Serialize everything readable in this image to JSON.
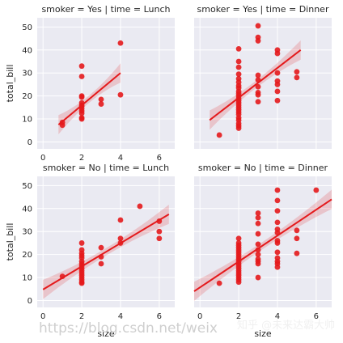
{
  "chart_data": [
    {
      "type": "scatter",
      "title": "smoker = Yes | time = Lunch",
      "xlabel": "",
      "ylabel": "total_bill",
      "xlim": [
        -0.3,
        6.8
      ],
      "ylim": [
        -3,
        54
      ],
      "x_ticks": [
        "0",
        "2",
        "4",
        "6"
      ],
      "y_ticks": [
        "0",
        "10",
        "20",
        "30",
        "40",
        "50"
      ],
      "color": "#e41a1c",
      "grid": true,
      "regression": {
        "x": [
          0.8,
          4.0
        ],
        "y": [
          7.5,
          30.0
        ]
      },
      "points": [
        {
          "x": 1,
          "y": 8.5
        },
        {
          "x": 1,
          "y": 7.3
        },
        {
          "x": 2,
          "y": 33.0
        },
        {
          "x": 2,
          "y": 28.5
        },
        {
          "x": 2,
          "y": 20.0
        },
        {
          "x": 2,
          "y": 16.0
        },
        {
          "x": 2,
          "y": 15.5
        },
        {
          "x": 2,
          "y": 14.5
        },
        {
          "x": 2,
          "y": 13.5
        },
        {
          "x": 2,
          "y": 12.5
        },
        {
          "x": 2,
          "y": 10.5
        },
        {
          "x": 2,
          "y": 10.0
        },
        {
          "x": 2,
          "y": 19.5
        },
        {
          "x": 2,
          "y": 17.0
        },
        {
          "x": 3,
          "y": 16.5
        },
        {
          "x": 3,
          "y": 18.5
        },
        {
          "x": 4,
          "y": 43.0
        },
        {
          "x": 4,
          "y": 20.5
        }
      ]
    },
    {
      "type": "scatter",
      "title": "smoker = Yes | time = Dinner",
      "xlabel": "",
      "ylabel": "",
      "xlim": [
        -0.3,
        6.8
      ],
      "ylim": [
        -3,
        54
      ],
      "color": "#e41a1c",
      "grid": true,
      "regression": {
        "x": [
          0.5,
          5.2
        ],
        "y": [
          9.5,
          40.0
        ]
      },
      "points": [
        {
          "x": 1,
          "y": 3.0
        },
        {
          "x": 2,
          "y": 40.5
        },
        {
          "x": 2,
          "y": 35.0
        },
        {
          "x": 2,
          "y": 32.5
        },
        {
          "x": 2,
          "y": 29.5
        },
        {
          "x": 2,
          "y": 27.5
        },
        {
          "x": 2,
          "y": 26.0
        },
        {
          "x": 2,
          "y": 24.5
        },
        {
          "x": 2,
          "y": 23.5
        },
        {
          "x": 2,
          "y": 22.0
        },
        {
          "x": 2,
          "y": 21.0
        },
        {
          "x": 2,
          "y": 20.0
        },
        {
          "x": 2,
          "y": 19.0
        },
        {
          "x": 2,
          "y": 18.0
        },
        {
          "x": 2,
          "y": 17.0
        },
        {
          "x": 2,
          "y": 16.0
        },
        {
          "x": 2,
          "y": 15.0
        },
        {
          "x": 2,
          "y": 14.0
        },
        {
          "x": 2,
          "y": 13.0
        },
        {
          "x": 2,
          "y": 12.0
        },
        {
          "x": 2,
          "y": 10.5
        },
        {
          "x": 2,
          "y": 9.5
        },
        {
          "x": 2,
          "y": 8.0
        },
        {
          "x": 2,
          "y": 7.0
        },
        {
          "x": 2,
          "y": 6.0
        },
        {
          "x": 3,
          "y": 50.5
        },
        {
          "x": 3,
          "y": 45.5
        },
        {
          "x": 3,
          "y": 44.0
        },
        {
          "x": 3,
          "y": 29.0
        },
        {
          "x": 3,
          "y": 27.0
        },
        {
          "x": 3,
          "y": 24.0
        },
        {
          "x": 3,
          "y": 21.5
        },
        {
          "x": 3,
          "y": 20.5
        },
        {
          "x": 3,
          "y": 17.5
        },
        {
          "x": 4,
          "y": 40.0
        },
        {
          "x": 4,
          "y": 38.5
        },
        {
          "x": 4,
          "y": 30.0
        },
        {
          "x": 4,
          "y": 26.5
        },
        {
          "x": 4,
          "y": 25.0
        },
        {
          "x": 4,
          "y": 22.0
        },
        {
          "x": 4,
          "y": 18.0
        },
        {
          "x": 5,
          "y": 30.5
        },
        {
          "x": 5,
          "y": 28.0
        }
      ]
    },
    {
      "type": "scatter",
      "title": "smoker = No | time = Lunch",
      "xlabel": "size",
      "ylabel": "total_bill",
      "xlim": [
        -0.3,
        6.8
      ],
      "ylim": [
        -3,
        54
      ],
      "x_ticks": [
        "0",
        "2",
        "4",
        "6"
      ],
      "y_ticks": [
        "0",
        "10",
        "20",
        "30",
        "40",
        "50"
      ],
      "color": "#e41a1c",
      "grid": true,
      "regression": {
        "x": [
          0.0,
          6.5
        ],
        "y": [
          4.8,
          37.5
        ]
      },
      "points": [
        {
          "x": 1,
          "y": 10.5
        },
        {
          "x": 2,
          "y": 25.0
        },
        {
          "x": 2,
          "y": 22.0
        },
        {
          "x": 2,
          "y": 20.5
        },
        {
          "x": 2,
          "y": 19.5
        },
        {
          "x": 2,
          "y": 18.5
        },
        {
          "x": 2,
          "y": 17.0
        },
        {
          "x": 2,
          "y": 16.0
        },
        {
          "x": 2,
          "y": 15.0
        },
        {
          "x": 2,
          "y": 14.0
        },
        {
          "x": 2,
          "y": 13.0
        },
        {
          "x": 2,
          "y": 12.0
        },
        {
          "x": 2,
          "y": 11.0
        },
        {
          "x": 2,
          "y": 10.0
        },
        {
          "x": 2,
          "y": 9.0
        },
        {
          "x": 2,
          "y": 8.0
        },
        {
          "x": 2,
          "y": 7.5
        },
        {
          "x": 3,
          "y": 23.0
        },
        {
          "x": 3,
          "y": 19.0
        },
        {
          "x": 3,
          "y": 16.0
        },
        {
          "x": 4,
          "y": 35.0
        },
        {
          "x": 4,
          "y": 27.0
        },
        {
          "x": 4,
          "y": 25.0
        },
        {
          "x": 5,
          "y": 41.0
        },
        {
          "x": 6,
          "y": 34.5
        },
        {
          "x": 6,
          "y": 30.0
        },
        {
          "x": 6,
          "y": 27.0
        }
      ]
    },
    {
      "type": "scatter",
      "title": "smoker = No | time = Dinner",
      "xlabel": "size",
      "ylabel": "",
      "xlim": [
        -0.3,
        6.8
      ],
      "ylim": [
        -3,
        54
      ],
      "x_ticks": [
        "0",
        "2",
        "4",
        "6"
      ],
      "color": "#e41a1c",
      "grid": true,
      "regression": {
        "x": [
          -0.3,
          6.8
        ],
        "y": [
          4.0,
          44.0
        ]
      },
      "points": [
        {
          "x": 1,
          "y": 7.5
        },
        {
          "x": 2,
          "y": 27.0
        },
        {
          "x": 2,
          "y": 25.0
        },
        {
          "x": 2,
          "y": 24.0
        },
        {
          "x": 2,
          "y": 23.0
        },
        {
          "x": 2,
          "y": 22.0
        },
        {
          "x": 2,
          "y": 21.0
        },
        {
          "x": 2,
          "y": 20.0
        },
        {
          "x": 2,
          "y": 19.0
        },
        {
          "x": 2,
          "y": 18.0
        },
        {
          "x": 2,
          "y": 17.0
        },
        {
          "x": 2,
          "y": 16.0
        },
        {
          "x": 2,
          "y": 15.0
        },
        {
          "x": 2,
          "y": 14.0
        },
        {
          "x": 2,
          "y": 13.0
        },
        {
          "x": 2,
          "y": 12.0
        },
        {
          "x": 2,
          "y": 11.0
        },
        {
          "x": 2,
          "y": 10.0
        },
        {
          "x": 2,
          "y": 9.0
        },
        {
          "x": 2,
          "y": 8.0
        },
        {
          "x": 3,
          "y": 38.0
        },
        {
          "x": 3,
          "y": 36.0
        },
        {
          "x": 3,
          "y": 33.5
        },
        {
          "x": 3,
          "y": 29.0
        },
        {
          "x": 3,
          "y": 24.5
        },
        {
          "x": 3,
          "y": 22.0
        },
        {
          "x": 3,
          "y": 20.0
        },
        {
          "x": 3,
          "y": 18.0
        },
        {
          "x": 3,
          "y": 17.0
        },
        {
          "x": 3,
          "y": 16.0
        },
        {
          "x": 3,
          "y": 10.0
        },
        {
          "x": 4,
          "y": 48.0
        },
        {
          "x": 4,
          "y": 43.5
        },
        {
          "x": 4,
          "y": 39.0
        },
        {
          "x": 4,
          "y": 34.0
        },
        {
          "x": 4,
          "y": 31.0
        },
        {
          "x": 4,
          "y": 29.5
        },
        {
          "x": 4,
          "y": 26.0
        },
        {
          "x": 4,
          "y": 25.0
        },
        {
          "x": 4,
          "y": 21.0
        },
        {
          "x": 4,
          "y": 18.5
        },
        {
          "x": 4,
          "y": 17.0
        },
        {
          "x": 4,
          "y": 16.0
        },
        {
          "x": 4,
          "y": 14.5
        },
        {
          "x": 5,
          "y": 30.5
        },
        {
          "x": 5,
          "y": 27.0
        },
        {
          "x": 5,
          "y": 20.5
        },
        {
          "x": 6,
          "y": 48.0
        }
      ]
    }
  ],
  "watermark": {
    "url_text": "https://blog.csdn.net/weix",
    "brand_text": "知乎 @未来达霸大帅"
  }
}
